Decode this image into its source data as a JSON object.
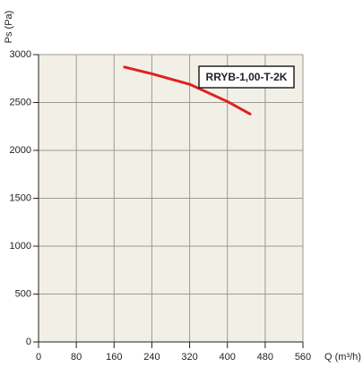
{
  "chart_data": {
    "type": "line",
    "ylabel": "Ps (Pa)",
    "xlabel": "Q (m³/h)",
    "annotation": "RRYB-1,00-T-2K",
    "x": [
      182,
      240,
      320,
      400,
      448
    ],
    "series": [
      {
        "name": "RRYB-1,00-T-2K",
        "color": "#e02020",
        "values": [
          2870,
          2800,
          2690,
          2510,
          2380
        ]
      }
    ],
    "xlim": [
      0,
      560
    ],
    "xticks": [
      0,
      80,
      160,
      240,
      320,
      400,
      480,
      560
    ],
    "ylim": [
      0,
      3000
    ],
    "yticks": [
      0,
      500,
      1000,
      1500,
      2000,
      2500,
      3000
    ],
    "grid": true
  }
}
